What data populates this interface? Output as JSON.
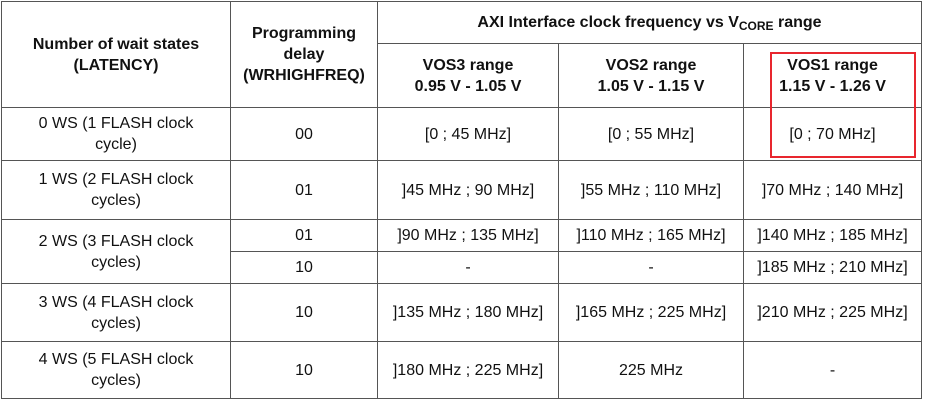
{
  "table": {
    "header": {
      "col_latency": [
        "Number of wait states",
        "(LATENCY)"
      ],
      "col_delay": [
        "Programming",
        "delay",
        "(WRHIGHFREQ)"
      ],
      "group_title_pre": "AXI Interface clock frequency vs V",
      "group_title_sub": "CORE",
      "group_title_post": " range",
      "vos": [
        {
          "name": "VOS3 range",
          "range": "0.95 V - 1.05 V"
        },
        {
          "name": "VOS2 range",
          "range": "1.05 V - 1.15 V"
        },
        {
          "name": "VOS1 range",
          "range": "1.15 V - 1.26 V"
        }
      ]
    },
    "rows": [
      {
        "ws": [
          "0 WS (1 FLASH clock",
          "cycle)"
        ],
        "delay": "00",
        "vos3": "[0 ; 45 MHz]",
        "vos2": "[0 ; 55 MHz]",
        "vos1": "[0 ; 70 MHz]"
      },
      {
        "ws": [
          "1 WS (2 FLASH clock",
          "cycles)"
        ],
        "delay": "01",
        "vos3": "]45 MHz ; 90 MHz]",
        "vos2": "]55 MHz ; 110 MHz]",
        "vos1": "]70 MHz ; 140 MHz]"
      },
      {
        "ws": [
          "2 WS (3 FLASH clock",
          "cycles)"
        ],
        "delay": "01",
        "vos3": "]90 MHz ; 135 MHz]",
        "vos2": "]110 MHz ; 165 MHz]",
        "vos1": "]140 MHz ; 185 MHz]"
      },
      {
        "delay": "10",
        "vos3": "-",
        "vos2": "-",
        "vos1": "]185 MHz ; 210 MHz]"
      },
      {
        "ws": [
          "3 WS (4 FLASH clock",
          "cycles)"
        ],
        "delay": "10",
        "vos3": "]135 MHz ; 180 MHz]",
        "vos2": "]165 MHz ; 225 MHz]",
        "vos1": "]210 MHz ; 225 MHz]"
      },
      {
        "ws": [
          "4 WS (5 FLASH clock",
          "cycles)"
        ],
        "delay": "10",
        "vos3": "]180 MHz ; 225 MHz]",
        "vos2": "225 MHz",
        "vos1": "-"
      }
    ]
  },
  "highlight_color": "#e8262e"
}
